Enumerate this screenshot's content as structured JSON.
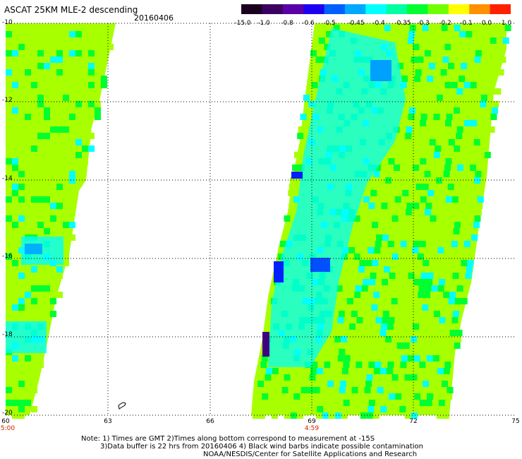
{
  "header": {
    "title": "ASCAT 25KM MLE-2 descending",
    "date": "20160406"
  },
  "colorbar": {
    "labels": [
      "-15.0",
      "-1.0",
      "-0.8",
      "-0.6",
      "-0.5",
      "-0.45",
      "-0.4",
      "-0.35",
      "-0.3",
      "-0.2",
      "-0.1",
      "0.0",
      "1.0"
    ],
    "colors": [
      "#1a0020",
      "#3c0060",
      "#5a00a8",
      "#1c00f0",
      "#0060ff",
      "#00a8ff",
      "#00ffff",
      "#00ffa0",
      "#00ff30",
      "#70ff00",
      "#ffff00",
      "#ff9000",
      "#ff2000"
    ]
  },
  "axes": {
    "lat_labels": [
      "-10",
      "-12",
      "-14",
      "-16",
      "-18",
      "-20"
    ],
    "lon_labels": [
      "60",
      "63",
      "66",
      "69",
      "72",
      "75"
    ],
    "time_labels": [
      "5:00",
      "4:59"
    ]
  },
  "notes": {
    "line1": "Note: 1) Times are GMT 2)Times along bottom correspond to measurement at -15S",
    "line2": "3)Data buffer is 22 hrs from 20160406 4) Black wind barbs indicate possible contamination",
    "line3": "NOAA/NESDIS/Center for Satellite Applications and Research"
  },
  "colors": {
    "lime": "#a8ff00",
    "green": "#00ff30",
    "cyan": "#00ffff",
    "blue": "#0020ff"
  }
}
